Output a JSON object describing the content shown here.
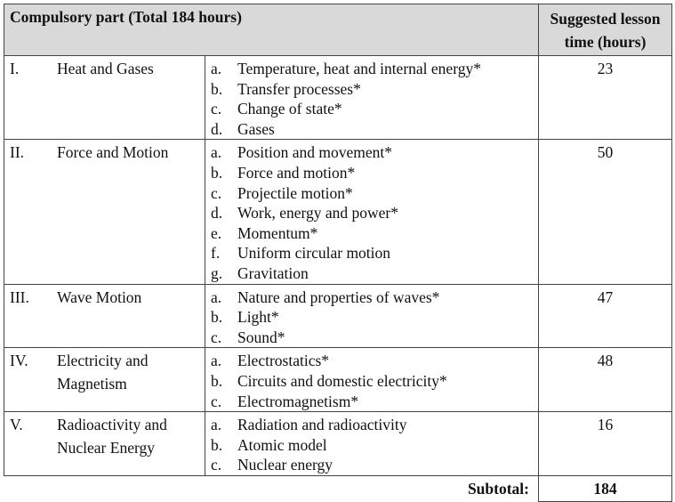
{
  "header": {
    "title": "Compulsory part (Total 184 hours)",
    "hours_title_line1": "Suggested lesson",
    "hours_title_line2": "time (hours)"
  },
  "topics": [
    {
      "numeral": "I.",
      "name": "Heat and Gases",
      "hours": "23",
      "items": [
        [
          "a.",
          "Temperature, heat and internal energy*"
        ],
        [
          "b.",
          "Transfer processes*"
        ],
        [
          "c.",
          "Change of state*"
        ],
        [
          "d.",
          "Gases"
        ]
      ]
    },
    {
      "numeral": "II.",
      "name": "Force and Motion",
      "hours": "50",
      "items": [
        [
          "a.",
          "Position and movement*"
        ],
        [
          "b.",
          "Force and motion*"
        ],
        [
          "c.",
          "Projectile motion*"
        ],
        [
          "d.",
          "Work, energy and power*"
        ],
        [
          "e.",
          "Momentum*"
        ],
        [
          "f.",
          "Uniform circular motion"
        ],
        [
          "g.",
          "Gravitation"
        ]
      ]
    },
    {
      "numeral": "III.",
      "name": "Wave Motion",
      "hours": "47",
      "items": [
        [
          "a.",
          "Nature and properties of waves*"
        ],
        [
          "b.",
          "Light*"
        ],
        [
          "c.",
          "Sound*"
        ]
      ]
    },
    {
      "numeral": "IV.",
      "name": "Electricity and Magnetism",
      "hours": "48",
      "items": [
        [
          "a.",
          "Electrostatics*"
        ],
        [
          "b.",
          "Circuits and domestic electricity*"
        ],
        [
          "c.",
          "Electromagnetism*"
        ]
      ]
    },
    {
      "numeral": "V.",
      "name": "Radioactivity and Nuclear Energy",
      "hours": "16",
      "items": [
        [
          "a.",
          "Radiation and radioactivity"
        ],
        [
          "b.",
          "Atomic model"
        ],
        [
          "c.",
          "Nuclear energy"
        ]
      ]
    }
  ],
  "subtotal": {
    "label": "Subtotal:",
    "value": "184"
  }
}
